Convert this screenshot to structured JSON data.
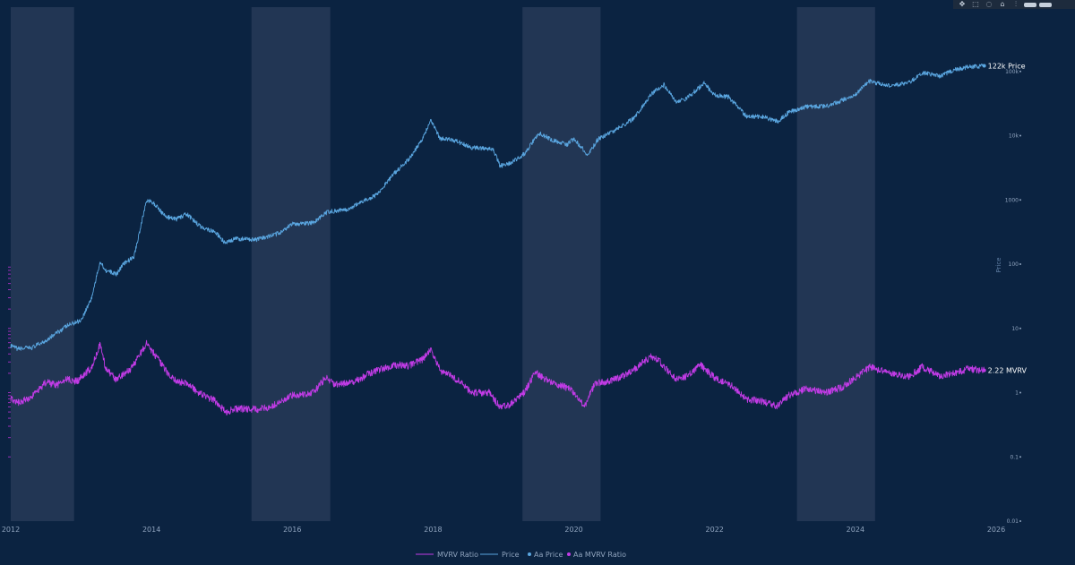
{
  "toolbar": {
    "buttons": [
      {
        "name": "pan-icon",
        "glyph": "✥"
      },
      {
        "name": "box-select-icon",
        "glyph": "⬚"
      },
      {
        "name": "lasso-icon",
        "glyph": "◌"
      },
      {
        "name": "home-icon",
        "glyph": "⌂"
      },
      {
        "name": "spike-lines-icon",
        "glyph": "⫶"
      }
    ]
  },
  "colors": {
    "background": "#0b2341",
    "band": "#223654",
    "price": "#5aa6e0",
    "mvrv": "#c23be6",
    "tick": "#8fa3bd"
  },
  "chart_data": {
    "type": "line",
    "title": "",
    "x_range": [
      2012.0,
      2026.0
    ],
    "x_ticks": [
      "2012",
      "2014",
      "2016",
      "2018",
      "2020",
      "2022",
      "2024",
      "2026"
    ],
    "shaded_periods": [
      [
        2012.0,
        2012.9
      ],
      [
        2015.42,
        2016.54
      ],
      [
        2019.27,
        2020.38
      ],
      [
        2023.17,
        2024.28
      ]
    ],
    "y_right": {
      "title": "Price",
      "scale": "log",
      "range": [
        0.01,
        1000000
      ],
      "ticks": [
        "0.01",
        "0.1",
        "1",
        "10",
        "100",
        "1000",
        "10k",
        "100k"
      ]
    },
    "series": [
      {
        "name": "Price",
        "axis": "right",
        "points": [
          [
            2012.0,
            5.3
          ],
          [
            2012.1,
            4.8
          ],
          [
            2012.3,
            5.0
          ],
          [
            2012.5,
            6.5
          ],
          [
            2012.8,
            11
          ],
          [
            2013.0,
            13.5
          ],
          [
            2013.15,
            30
          ],
          [
            2013.27,
            110
          ],
          [
            2013.35,
            80
          ],
          [
            2013.5,
            70
          ],
          [
            2013.6,
            100
          ],
          [
            2013.75,
            130
          ],
          [
            2013.85,
            400
          ],
          [
            2013.93,
            1000
          ],
          [
            2014.05,
            850
          ],
          [
            2014.2,
            550
          ],
          [
            2014.35,
            500
          ],
          [
            2014.5,
            600
          ],
          [
            2014.7,
            380
          ],
          [
            2014.9,
            320
          ],
          [
            2015.05,
            210
          ],
          [
            2015.2,
            250
          ],
          [
            2015.5,
            240
          ],
          [
            2015.8,
            300
          ],
          [
            2016.0,
            420
          ],
          [
            2016.3,
            440
          ],
          [
            2016.5,
            650
          ],
          [
            2016.8,
            720
          ],
          [
            2017.0,
            950
          ],
          [
            2017.2,
            1200
          ],
          [
            2017.45,
            2600
          ],
          [
            2017.65,
            4200
          ],
          [
            2017.85,
            9000
          ],
          [
            2017.97,
            17500
          ],
          [
            2018.1,
            9000
          ],
          [
            2018.3,
            8500
          ],
          [
            2018.55,
            6500
          ],
          [
            2018.85,
            6300
          ],
          [
            2018.95,
            3400
          ],
          [
            2019.1,
            3700
          ],
          [
            2019.3,
            5200
          ],
          [
            2019.5,
            11000
          ],
          [
            2019.7,
            8500
          ],
          [
            2019.9,
            7200
          ],
          [
            2020.0,
            9000
          ],
          [
            2020.2,
            5000
          ],
          [
            2020.35,
            9000
          ],
          [
            2020.55,
            11500
          ],
          [
            2020.85,
            18500
          ],
          [
            2020.98,
            29000
          ],
          [
            2021.1,
            45000
          ],
          [
            2021.28,
            62000
          ],
          [
            2021.45,
            34000
          ],
          [
            2021.6,
            38000
          ],
          [
            2021.85,
            65000
          ],
          [
            2022.0,
            43000
          ],
          [
            2022.2,
            40000
          ],
          [
            2022.45,
            20000
          ],
          [
            2022.7,
            19500
          ],
          [
            2022.9,
            16500
          ],
          [
            2023.05,
            23000
          ],
          [
            2023.3,
            28000
          ],
          [
            2023.6,
            29000
          ],
          [
            2023.8,
            35000
          ],
          [
            2024.0,
            44000
          ],
          [
            2024.2,
            70000
          ],
          [
            2024.5,
            60000
          ],
          [
            2024.75,
            65000
          ],
          [
            2024.95,
            95000
          ],
          [
            2025.2,
            85000
          ],
          [
            2025.4,
            105000
          ],
          [
            2025.6,
            118000
          ],
          [
            2025.78,
            120000
          ],
          [
            2025.83,
            122000
          ]
        ]
      },
      {
        "name": "MVRV Ratio",
        "axis": "right",
        "points": [
          [
            2012.0,
            0.82
          ],
          [
            2012.1,
            0.7
          ],
          [
            2012.3,
            0.85
          ],
          [
            2012.5,
            1.45
          ],
          [
            2012.65,
            1.3
          ],
          [
            2012.8,
            1.6
          ],
          [
            2012.95,
            1.5
          ],
          [
            2013.15,
            2.5
          ],
          [
            2013.27,
            5.6
          ],
          [
            2013.35,
            2.4
          ],
          [
            2013.5,
            1.6
          ],
          [
            2013.7,
            2.3
          ],
          [
            2013.93,
            5.8
          ],
          [
            2014.05,
            3.9
          ],
          [
            2014.2,
            2.2
          ],
          [
            2014.35,
            1.5
          ],
          [
            2014.5,
            1.4
          ],
          [
            2014.7,
            0.95
          ],
          [
            2014.9,
            0.75
          ],
          [
            2015.05,
            0.5
          ],
          [
            2015.2,
            0.56
          ],
          [
            2015.5,
            0.55
          ],
          [
            2015.7,
            0.6
          ],
          [
            2016.0,
            0.9
          ],
          [
            2016.3,
            1.0
          ],
          [
            2016.48,
            1.75
          ],
          [
            2016.6,
            1.3
          ],
          [
            2016.9,
            1.5
          ],
          [
            2017.1,
            2.0
          ],
          [
            2017.3,
            2.4
          ],
          [
            2017.5,
            2.7
          ],
          [
            2017.65,
            2.6
          ],
          [
            2017.85,
            3.3
          ],
          [
            2017.97,
            4.6
          ],
          [
            2018.1,
            2.2
          ],
          [
            2018.25,
            1.9
          ],
          [
            2018.4,
            1.4
          ],
          [
            2018.55,
            1.0
          ],
          [
            2018.8,
            1.0
          ],
          [
            2018.95,
            0.6
          ],
          [
            2019.1,
            0.65
          ],
          [
            2019.3,
            1.0
          ],
          [
            2019.45,
            2.1
          ],
          [
            2019.6,
            1.6
          ],
          [
            2019.8,
            1.3
          ],
          [
            2019.95,
            1.15
          ],
          [
            2020.15,
            0.6
          ],
          [
            2020.3,
            1.4
          ],
          [
            2020.5,
            1.5
          ],
          [
            2020.7,
            1.8
          ],
          [
            2020.9,
            2.5
          ],
          [
            2021.1,
            3.7
          ],
          [
            2021.2,
            3.2
          ],
          [
            2021.45,
            1.6
          ],
          [
            2021.6,
            1.8
          ],
          [
            2021.8,
            2.7
          ],
          [
            2022.0,
            1.7
          ],
          [
            2022.2,
            1.4
          ],
          [
            2022.45,
            0.8
          ],
          [
            2022.7,
            0.72
          ],
          [
            2022.88,
            0.62
          ],
          [
            2023.05,
            0.9
          ],
          [
            2023.3,
            1.15
          ],
          [
            2023.6,
            1.0
          ],
          [
            2023.8,
            1.2
          ],
          [
            2024.0,
            1.7
          ],
          [
            2024.2,
            2.5
          ],
          [
            2024.5,
            2.0
          ],
          [
            2024.75,
            1.75
          ],
          [
            2024.95,
            2.5
          ],
          [
            2025.2,
            1.8
          ],
          [
            2025.4,
            2.0
          ],
          [
            2025.6,
            2.35
          ],
          [
            2025.83,
            2.22
          ]
        ]
      }
    ],
    "end_labels": [
      {
        "series": "Price",
        "text": "122k Price"
      },
      {
        "series": "MVRV Ratio",
        "text": "2.22 MVRV"
      }
    ],
    "legend": {
      "position": "bottom-center",
      "entries": [
        "MVRV Ratio",
        "Price",
        "Aa Price",
        "Aa MVRV Ratio"
      ]
    }
  }
}
